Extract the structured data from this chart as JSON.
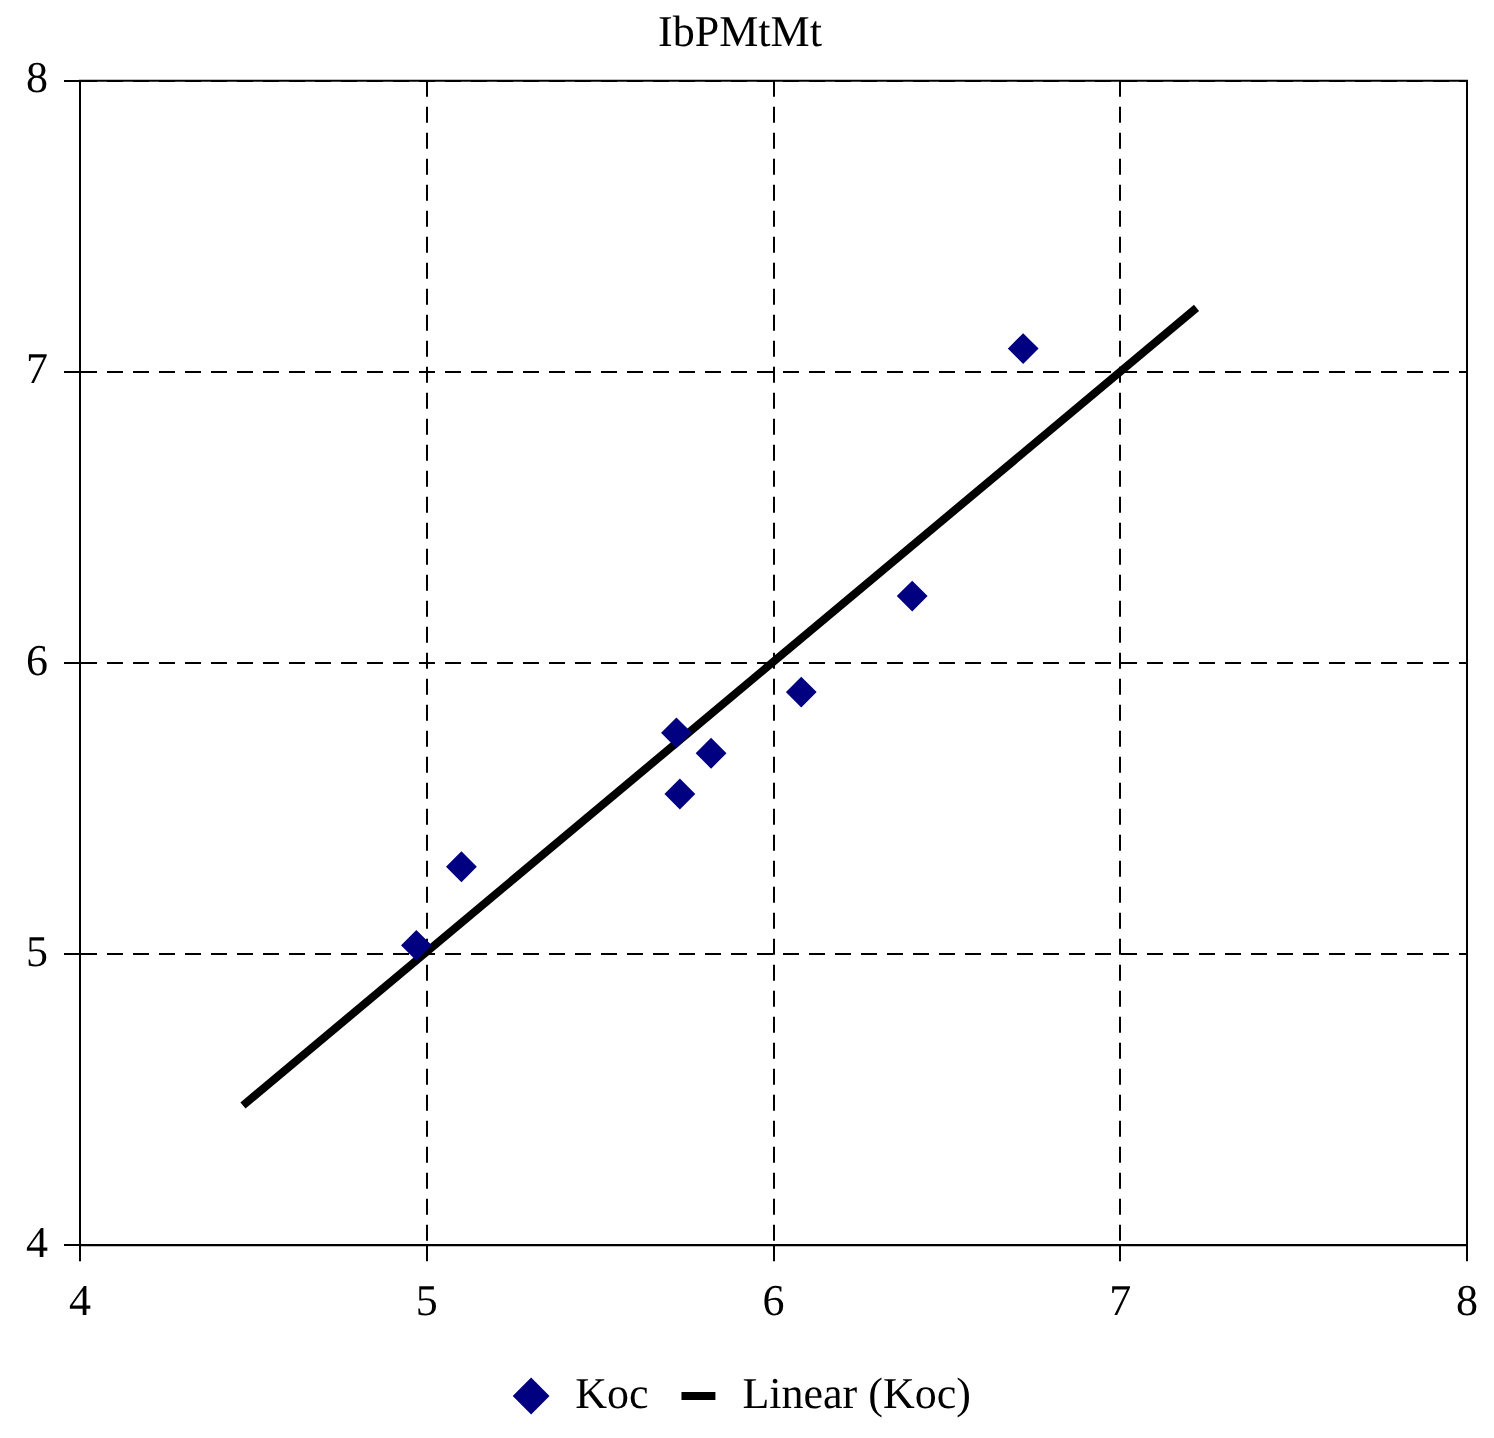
{
  "chart_data": {
    "type": "scatter",
    "title": "IbPMtMt",
    "series": [
      {
        "name": "Koc",
        "type": "scatter",
        "color": "#000080",
        "marker": "diamond",
        "x": [
          4.97,
          5.1,
          5.72,
          5.73,
          5.82,
          6.08,
          6.4,
          6.72
        ],
        "values": [
          5.03,
          5.3,
          5.76,
          5.55,
          5.69,
          5.9,
          6.23,
          7.08
        ]
      },
      {
        "name": "Linear (Koc)",
        "type": "line",
        "color": "#000000",
        "marker": "none",
        "line_style": "solid",
        "x": [
          4.47,
          7.22
        ],
        "values": [
          4.48,
          7.22
        ]
      }
    ],
    "xlim": [
      4,
      8
    ],
    "xticks": [
      4,
      5,
      6,
      7,
      8
    ],
    "ylim": [
      4,
      8
    ],
    "yticks": [
      4,
      5,
      6,
      7,
      8
    ],
    "grid": true,
    "legend": "bottom"
  }
}
